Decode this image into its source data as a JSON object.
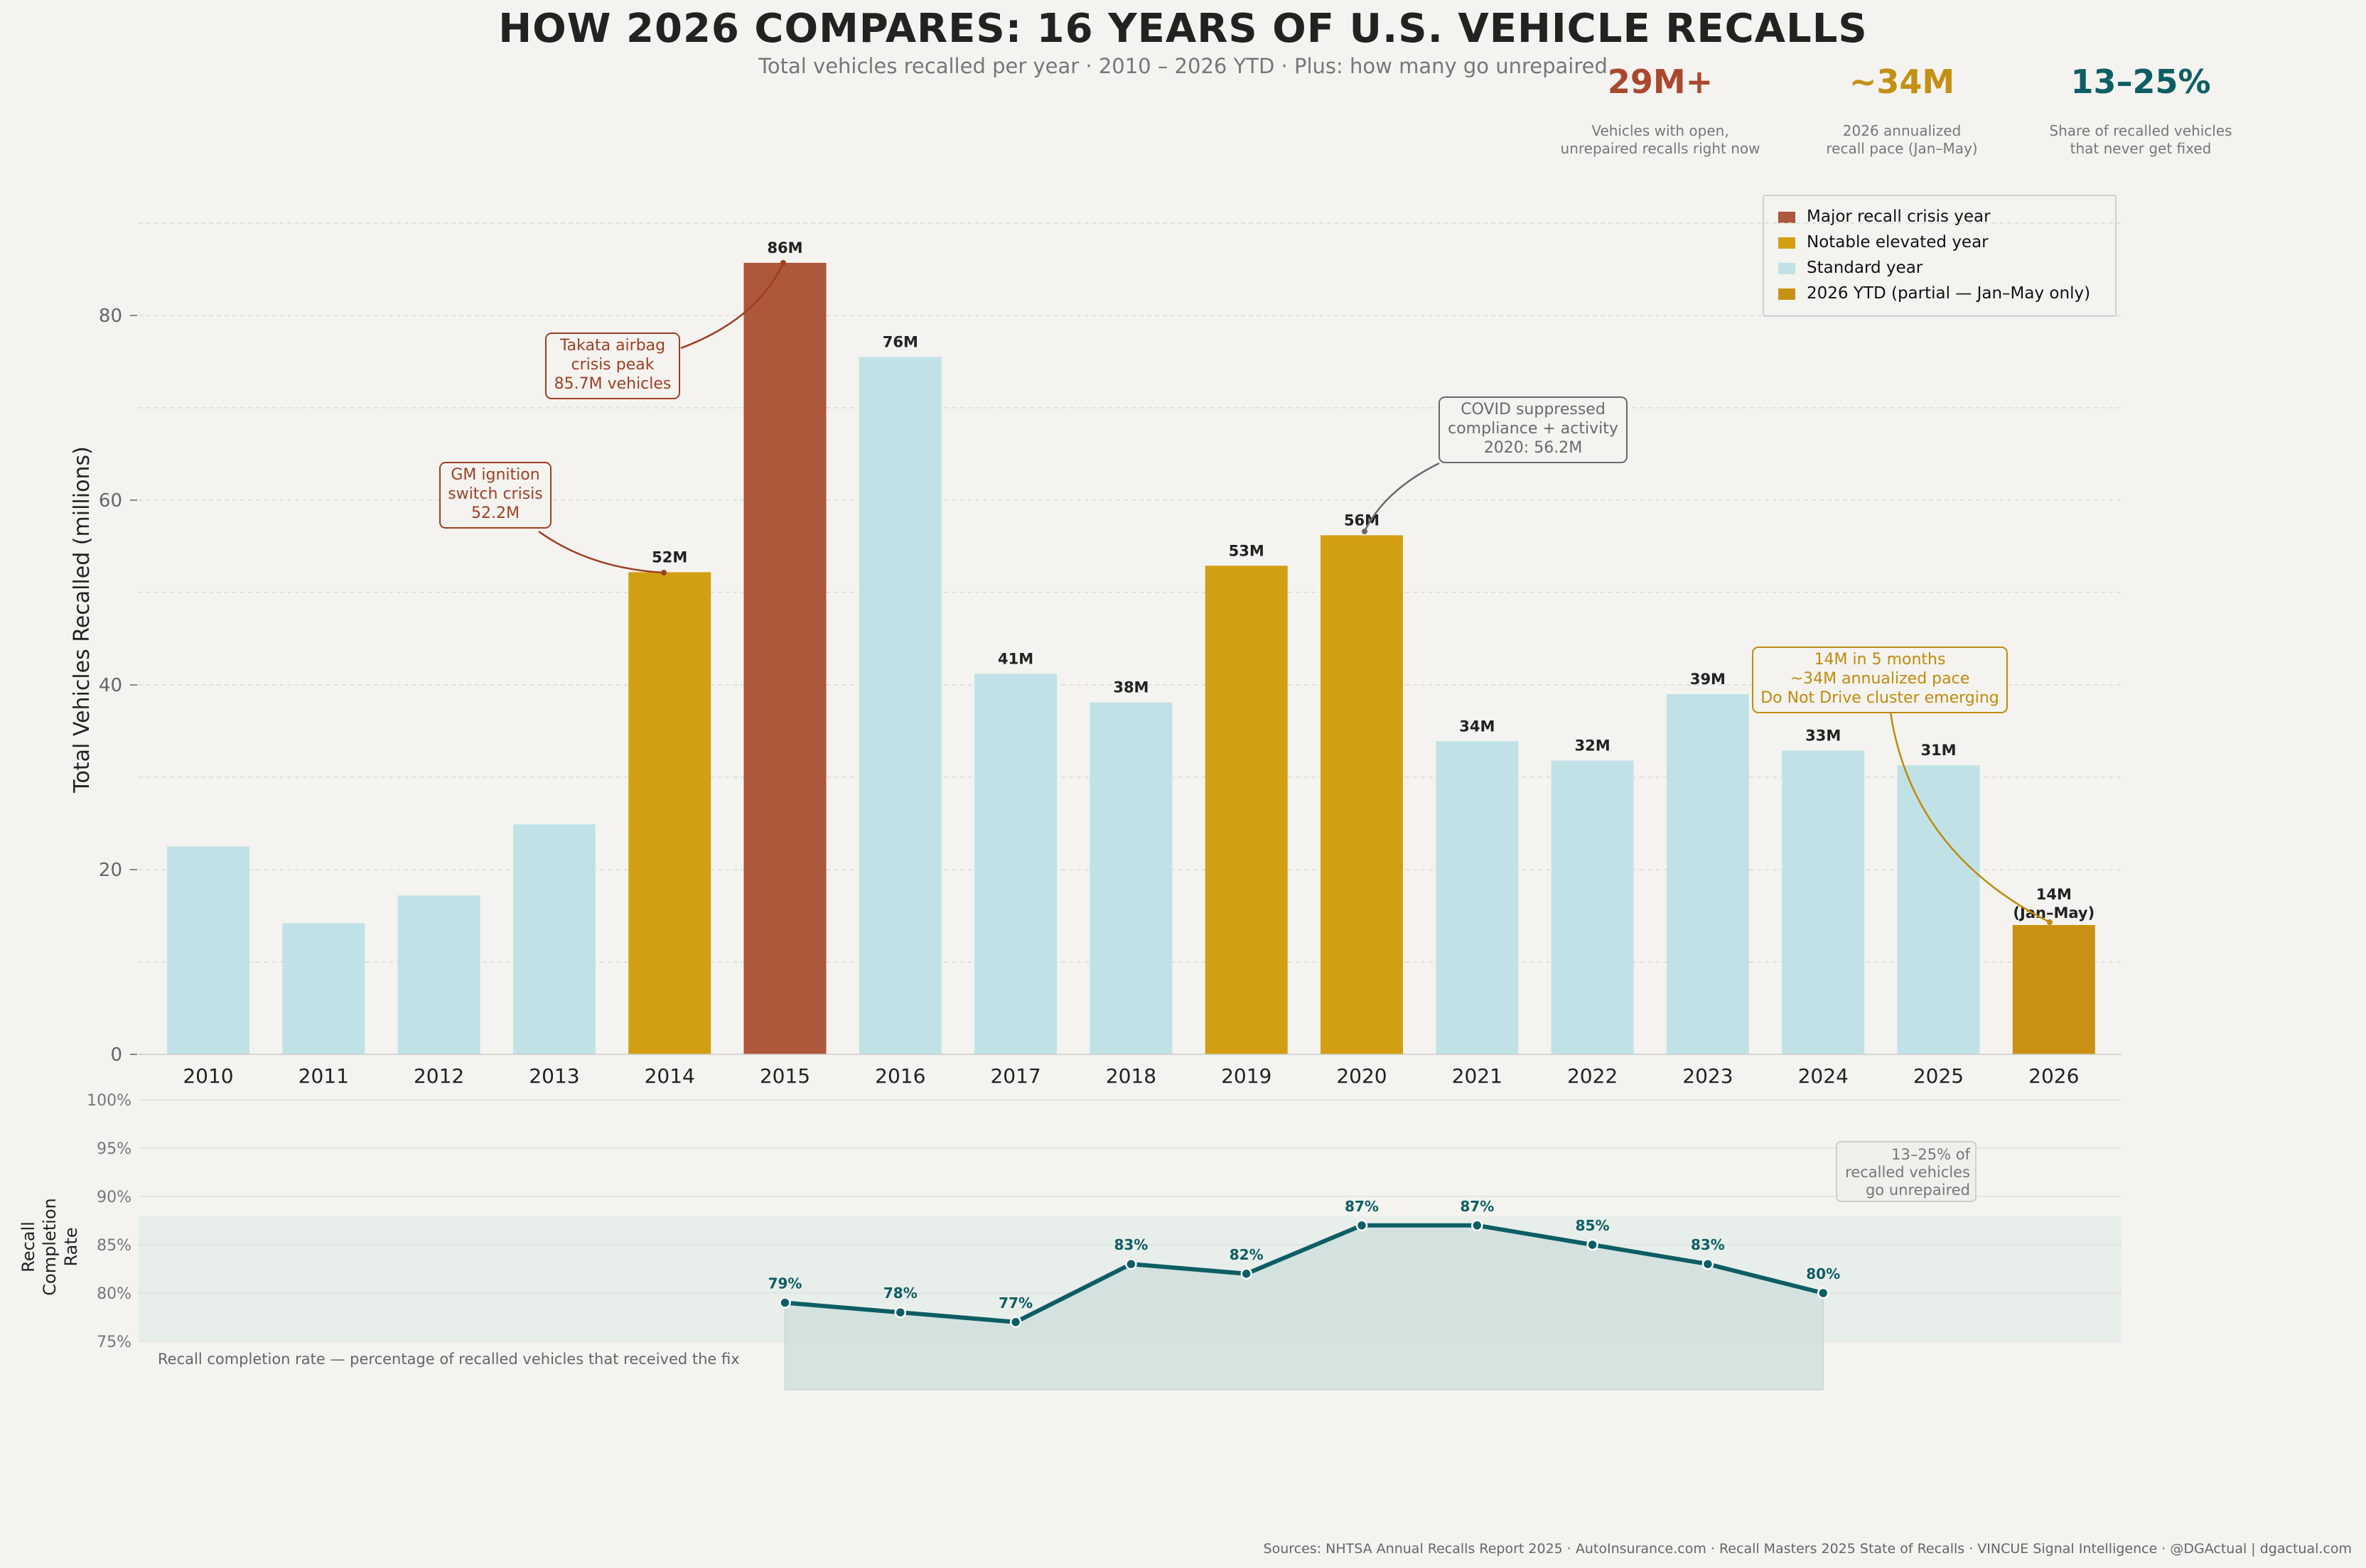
{
  "title": "HOW 2026 COMPARES: 16 YEARS OF U.S. VEHICLE RECALLS",
  "subtitle": "Total vehicles recalled per year  ·  2010 – 2026 YTD  ·  Plus: how many go unrepaired",
  "kpis": [
    {
      "value": "29M+",
      "label_line1": "Vehicles with open,",
      "label_line2": "unrepaired recalls right now",
      "color": "#a9482f"
    },
    {
      "value": "~34M",
      "label_line1": "2026 annualized",
      "label_line2": "recall pace (Jan–May)",
      "color": "#c39014"
    },
    {
      "value": "13–25%",
      "label_line1": "Share of recalled vehicles",
      "label_line2": "that never get fixed",
      "color": "#0d5e64"
    }
  ],
  "legend": [
    {
      "label": "Major recall crisis year",
      "color": "#ad573b"
    },
    {
      "label": "Notable elevated year",
      "color": "#d39f12"
    },
    {
      "label": "Standard year",
      "color": "#c0e2e6"
    },
    {
      "label": "2026 YTD (partial — Jan–May only)",
      "color": "#c99113"
    }
  ],
  "chart_data": [
    {
      "type": "bar",
      "ylabel": "Total Vehicles Recalled (millions)",
      "ylim": [
        0,
        90
      ],
      "yticks": [
        0,
        20,
        40,
        60,
        80
      ],
      "categories": [
        "2010",
        "2011",
        "2012",
        "2013",
        "2014",
        "2015",
        "2016",
        "2017",
        "2018",
        "2019",
        "2020",
        "2021",
        "2022",
        "2023",
        "2024",
        "2025",
        "2026"
      ],
      "values": [
        22.5,
        14.2,
        17.2,
        24.9,
        52.2,
        85.7,
        75.5,
        41.2,
        38.1,
        52.9,
        56.2,
        33.9,
        31.8,
        39.0,
        32.9,
        31.3,
        14.0
      ],
      "categories_kind": [
        "standard",
        "standard",
        "standard",
        "standard",
        "elevated",
        "crisis",
        "standard",
        "standard",
        "standard",
        "elevated",
        "elevated",
        "standard",
        "standard",
        "standard",
        "standard",
        "standard",
        "ytd"
      ],
      "bar_labels": [
        "",
        "",
        "",
        "",
        "52M",
        "86M",
        "76M",
        "41M",
        "38M",
        "53M",
        "56M",
        "34M",
        "32M",
        "39M",
        "33M",
        "31M",
        "14M"
      ],
      "bar_label_extra_2026": "(Jan–May)",
      "colors": {
        "standard": "#c0e2e6",
        "elevated": "#d39f12",
        "crisis": "#ad573b",
        "ytd": "#c99113"
      },
      "annotations": [
        {
          "lines": [
            "Takata airbag",
            "crisis peak",
            "85.7M vehicles"
          ],
          "target": "2015",
          "color": "#9e3f24"
        },
        {
          "lines": [
            "GM ignition",
            "switch crisis",
            "52.2M"
          ],
          "target": "2014",
          "color": "#9e3f24"
        },
        {
          "lines": [
            "COVID suppressed",
            "compliance + activity",
            "2020: 56.2M"
          ],
          "target": "2020",
          "color": "#6a6a6a"
        },
        {
          "lines": [
            "14M in 5 months",
            "~34M annualized pace",
            "Do Not Drive cluster emerging"
          ],
          "target": "2026",
          "color": "#c08a0e"
        }
      ]
    },
    {
      "type": "line",
      "ylabel_lines": [
        "Recall",
        "Completion",
        "Rate"
      ],
      "ylim": [
        75,
        100
      ],
      "yticks": [
        "75%",
        "80%",
        "85%",
        "90%",
        "95%",
        "100%"
      ],
      "x": [
        "2015",
        "2016",
        "2017",
        "2018",
        "2019",
        "2020",
        "2021",
        "2022",
        "2023",
        "2024"
      ],
      "values": [
        79,
        78,
        77,
        83,
        82,
        87,
        87,
        85,
        83,
        80
      ],
      "point_labels": [
        "79%",
        "78%",
        "77%",
        "83%",
        "82%",
        "87%",
        "87%",
        "85%",
        "83%",
        "80%"
      ],
      "note": "Recall completion rate — percentage of recalled vehicles that received the fix",
      "callout_lines": [
        "13–25% of",
        "recalled vehicles",
        "go unrepaired"
      ],
      "line_color": "#0d5e64"
    }
  ],
  "footer": "Sources: NHTSA Annual Recalls Report 2025  ·  AutoInsurance.com  ·  Recall Masters 2025 State of Recalls  ·  VINCUE Signal Intelligence  ·  @DGActual  |  dgactual.com"
}
